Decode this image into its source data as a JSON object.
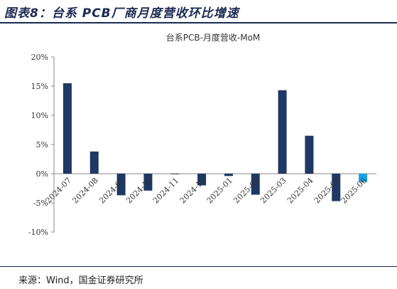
{
  "figure_title": "图表8：台系 PCB厂商月度营收环比增速",
  "source": "来源：Wind，国金证券研究所",
  "colors": {
    "bar": "#1f3864",
    "highlight": "#1aa3e8",
    "axis": "#888888",
    "rule": "#1b2a52"
  },
  "chart_data": {
    "type": "bar",
    "title": "台系PCB-月度营收-MoM",
    "xlabel": "",
    "ylabel": "",
    "ylim": [
      -10,
      20
    ],
    "yticks": [
      20,
      15,
      10,
      5,
      0,
      -5,
      -10
    ],
    "ytick_labels": [
      "20%",
      "15%",
      "10%",
      "5%",
      "0%",
      "-5%",
      "-10%"
    ],
    "categories": [
      "2024-07",
      "2024-08",
      "2024-09",
      "2024-10",
      "2024-11",
      "2024-12",
      "2025-01",
      "2025-02",
      "2025-03",
      "2025-04",
      "2025-05",
      "2025-06"
    ],
    "values": [
      15.5,
      3.8,
      -3.7,
      -2.9,
      -0.1,
      -2.0,
      -0.4,
      -3.6,
      14.3,
      6.5,
      -4.7,
      -1.4
    ],
    "highlight_index": 11,
    "grid": false,
    "legend": "none"
  }
}
